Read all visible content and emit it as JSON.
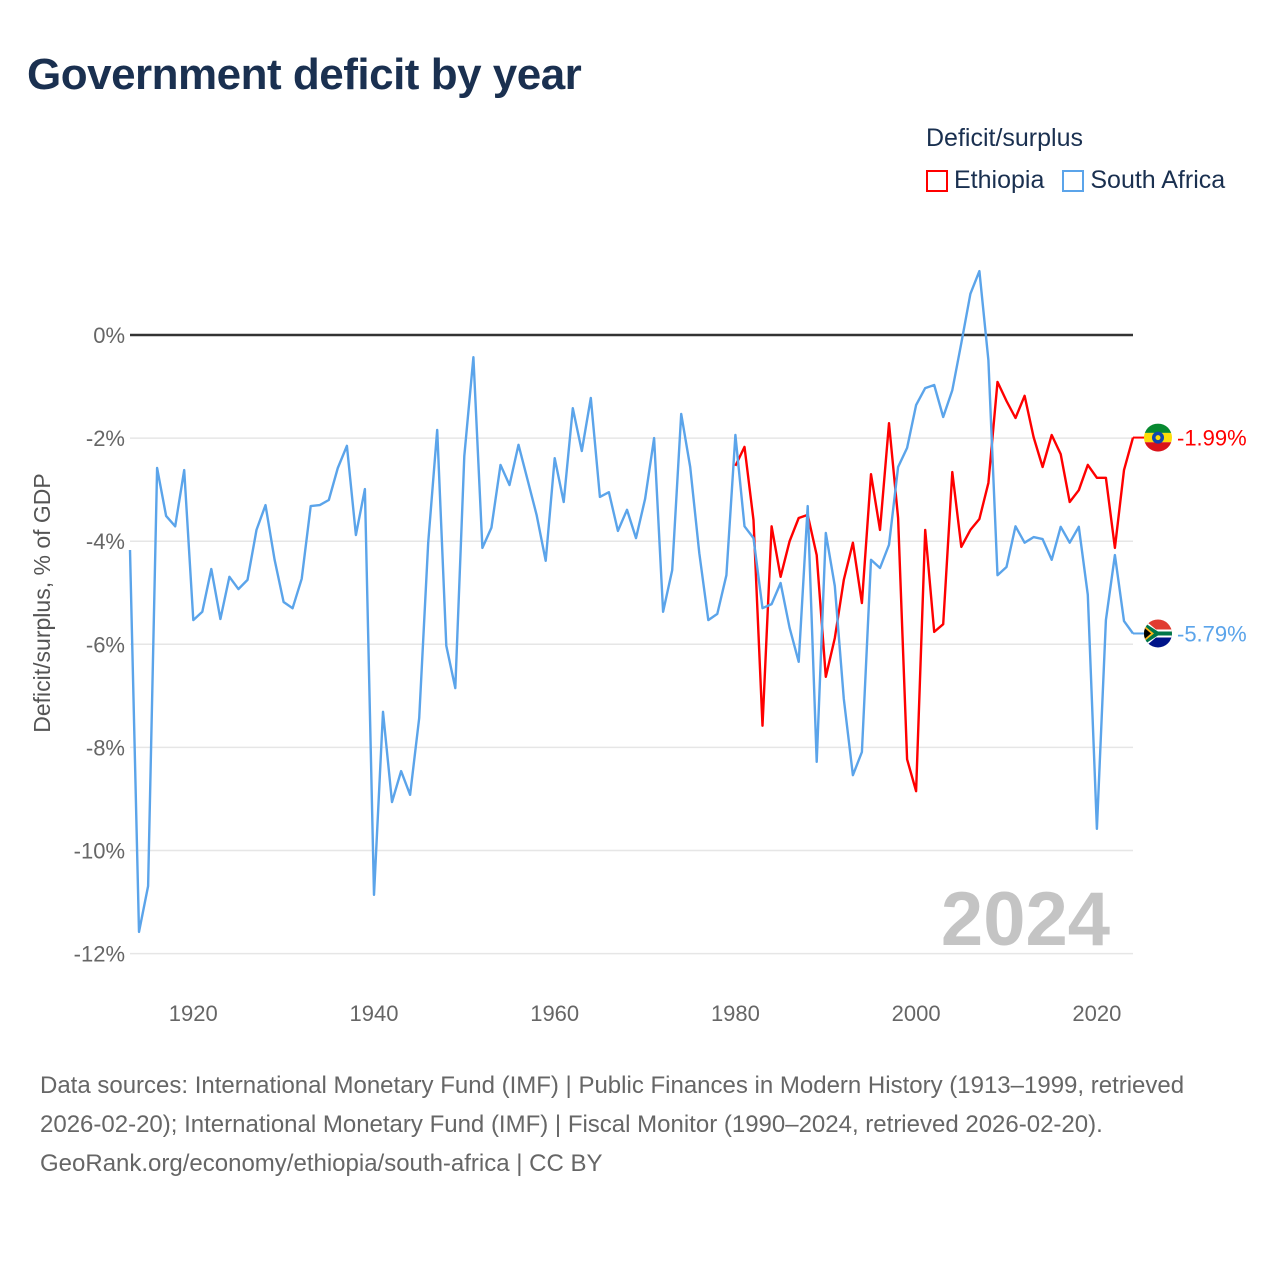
{
  "title": "Government deficit by year",
  "legend_title": "Deficit/surplus",
  "year_watermark": "2024",
  "footer": {
    "sources": "Data sources: International Monetary Fund (IMF) | Public Finances in Modern History (1913–1999, retrieved 2026-02-20); International Monetary Fund (IMF) | Fiscal Monitor (1990–2024, retrieved 2026-02-20).",
    "link": "GeoRank.org/economy/ethiopia/south-africa | CC BY"
  },
  "chart_data": {
    "type": "line",
    "title": "Government deficit by year",
    "xlabel": "",
    "ylabel": "Deficit/surplus, % of GDP",
    "xlim": [
      1913,
      2024
    ],
    "ylim": [
      -12,
      1.5
    ],
    "x_ticks": [
      1920,
      1940,
      1960,
      1980,
      2000,
      2020
    ],
    "x_tick_labels": [
      "1920",
      "1940",
      "1960",
      "1980",
      "2000",
      "2020"
    ],
    "y_ticks": [
      0,
      -2,
      -4,
      -6,
      -8,
      -10,
      -12
    ],
    "y_tick_labels": [
      "0%",
      "-2%",
      "-4%",
      "-6%",
      "-8%",
      "-10%",
      "-12%"
    ],
    "grid": true,
    "legend_position": "top-right",
    "series": [
      {
        "name": "Ethiopia",
        "color": "#ff0000",
        "start_year": 1980,
        "end_label": "-1.99%",
        "values": [
          -2.54,
          -2.17,
          -3.59,
          -7.58,
          -3.71,
          -4.69,
          -4.0,
          -3.55,
          -3.49,
          -4.27,
          -6.63,
          -5.88,
          -4.75,
          -4.03,
          -5.2,
          -2.7,
          -3.78,
          -1.71,
          -3.55,
          -8.23,
          -8.85,
          -3.78,
          -5.76,
          -5.61,
          -2.66,
          -4.11,
          -3.78,
          -3.57,
          -2.87,
          -0.91,
          -1.28,
          -1.61,
          -1.18,
          -1.98,
          -2.56,
          -1.94,
          -2.31,
          -3.24,
          -3.01,
          -2.52,
          -2.77,
          -2.77,
          -4.13,
          -2.62,
          -1.99
        ]
      },
      {
        "name": "South Africa",
        "color": "#5ba4ea",
        "start_year": 1913,
        "end_label": "-5.79%",
        "values": [
          -4.17,
          -11.58,
          -10.69,
          -2.58,
          -3.51,
          -3.71,
          -2.62,
          -5.53,
          -5.37,
          -4.54,
          -5.51,
          -4.69,
          -4.93,
          -4.75,
          -3.78,
          -3.3,
          -4.36,
          -5.18,
          -5.3,
          -4.73,
          -3.32,
          -3.3,
          -3.2,
          -2.58,
          -2.15,
          -3.88,
          -2.99,
          -10.86,
          -7.31,
          -9.06,
          -8.46,
          -8.92,
          -7.43,
          -4.03,
          -1.84,
          -6.03,
          -6.85,
          -2.35,
          -0.43,
          -4.13,
          -3.74,
          -2.52,
          -2.91,
          -2.13,
          -2.81,
          -3.49,
          -4.38,
          -2.39,
          -3.24,
          -1.42,
          -2.25,
          -1.22,
          -3.14,
          -3.05,
          -3.8,
          -3.39,
          -3.94,
          -3.18,
          -2.0,
          -5.37,
          -4.56,
          -1.53,
          -2.56,
          -4.23,
          -5.53,
          -5.41,
          -4.66,
          -1.94,
          -3.71,
          -3.94,
          -5.3,
          -5.22,
          -4.81,
          -5.68,
          -6.34,
          -3.32,
          -8.28,
          -3.84,
          -4.87,
          -7.06,
          -8.54,
          -8.09,
          -4.36,
          -4.52,
          -4.07,
          -2.56,
          -2.19,
          -1.36,
          -1.03,
          -0.97,
          -1.59,
          -1.07,
          -0.16,
          0.8,
          1.24,
          -0.49,
          -4.66,
          -4.5,
          -3.71,
          -4.03,
          -3.92,
          -3.96,
          -4.36,
          -3.72,
          -4.03,
          -3.72,
          -5.04,
          -9.58,
          -5.53,
          -4.27,
          -5.55,
          -5.79
        ]
      }
    ]
  }
}
